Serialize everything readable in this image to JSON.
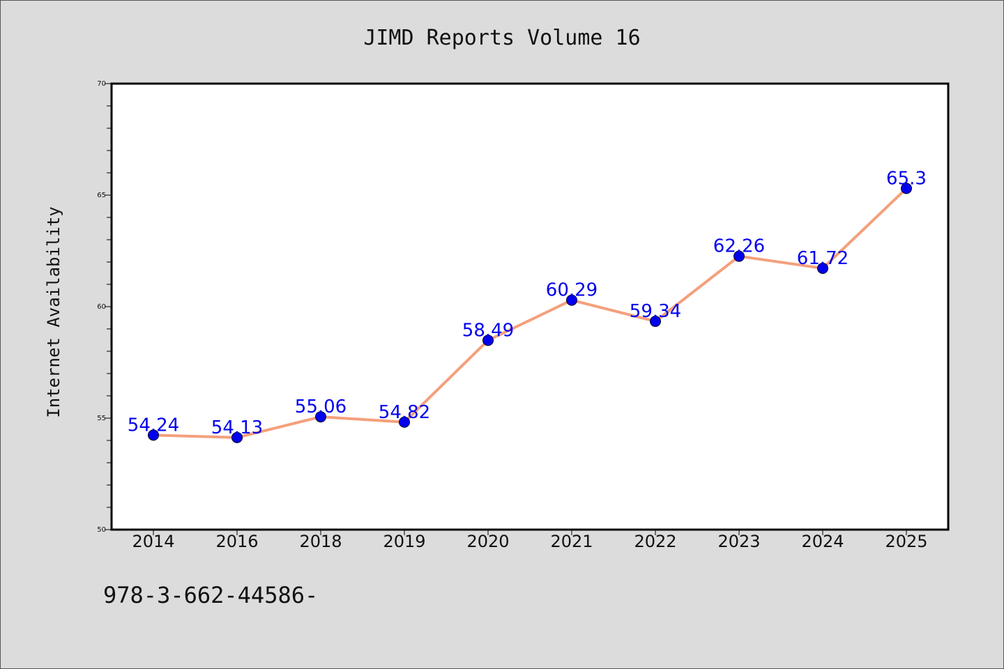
{
  "footer_text": "978-3-662-44586-",
  "chart_data": {
    "type": "line",
    "title": "JIMD Reports Volume 16",
    "xlabel": "",
    "ylabel": "Internet Availability",
    "categories": [
      "2014",
      "2016",
      "2018",
      "2019",
      "2020",
      "2021",
      "2022",
      "2023",
      "2024",
      "2025"
    ],
    "series": [
      {
        "values": [
          54.24,
          54.13,
          55.06,
          54.82,
          58.49,
          60.29,
          59.34,
          62.26,
          61.72,
          65.3
        ],
        "data_labels": [
          "54.24",
          "54.13",
          "55.06",
          "54.82",
          "58.49",
          "60.29",
          "59.34",
          "62.26",
          "61.72",
          "65.3"
        ],
        "line_color": "#f4a07c",
        "marker_color": "#0000ee",
        "label_color": "#0000ee"
      }
    ],
    "ylim": [
      50,
      70
    ],
    "yticks": [
      50,
      55,
      60,
      65,
      70
    ],
    "grid": false,
    "legend": "none"
  }
}
